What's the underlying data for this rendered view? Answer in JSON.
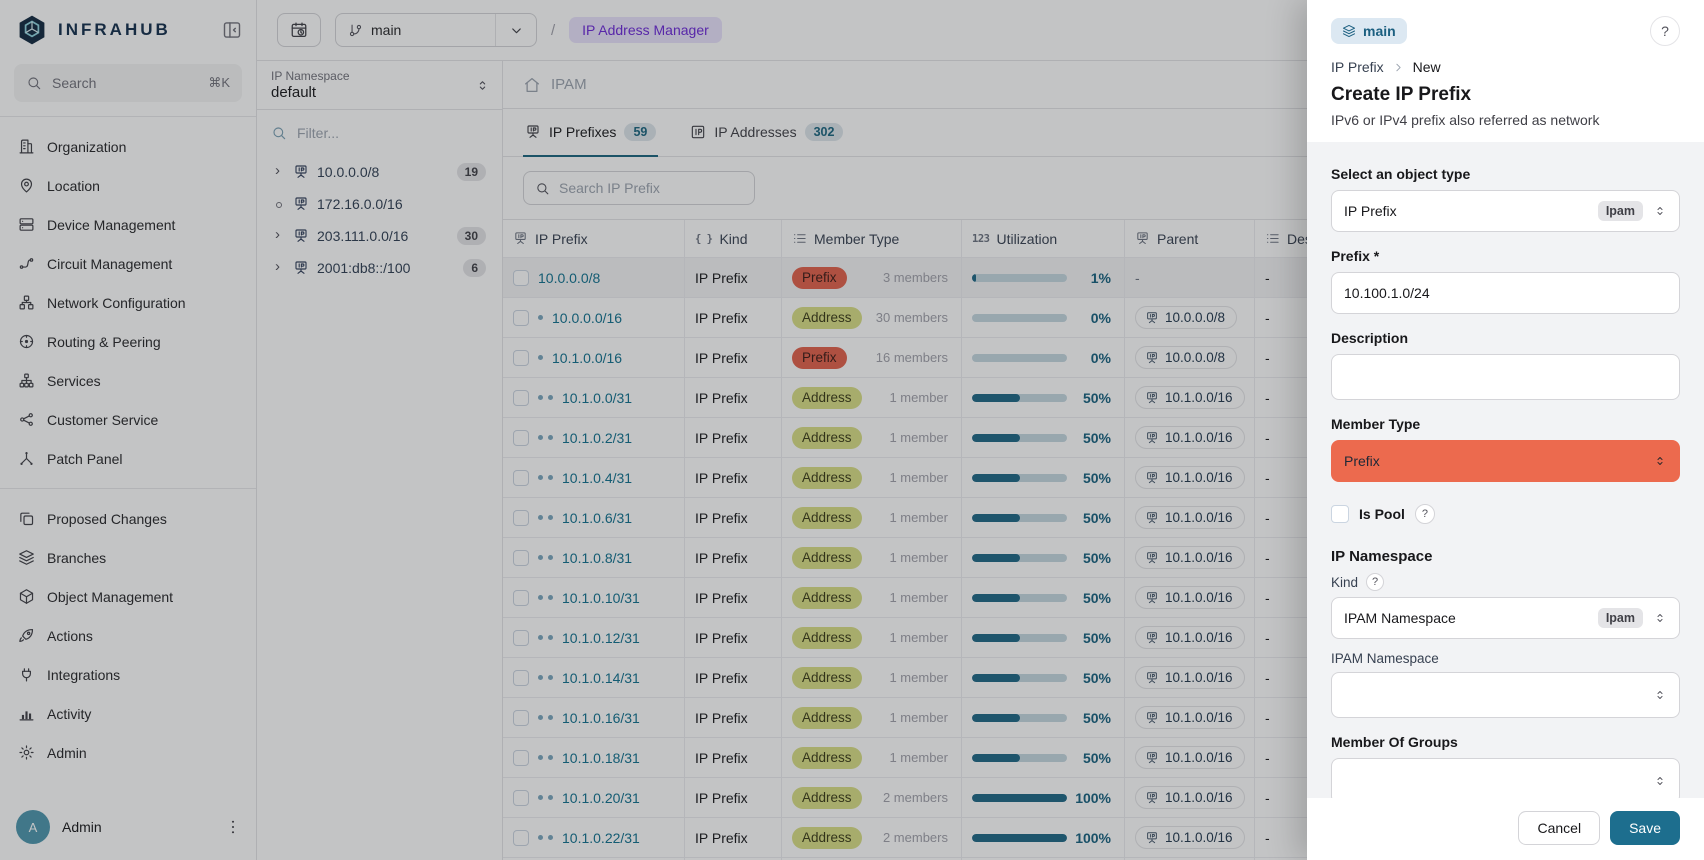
{
  "colors": {
    "accent_save": "#1d6e8e",
    "member_type_select_bg": "#ec6a4e",
    "prefix_badge_bg": "#e2604a",
    "address_badge_bg": "#d9df85",
    "link_text": "#10718f",
    "page_badge_bg": "#e9e2fc",
    "page_badge_text": "#6d28d9",
    "tab_underline": "#19647f"
  },
  "sidebar": {
    "logo_text": "INFRAHUB",
    "search": {
      "placeholder": "Search",
      "shortcut": "⌘K"
    },
    "items": [
      {
        "label": "Organization",
        "icon": "organization"
      },
      {
        "label": "Location",
        "icon": "location"
      },
      {
        "label": "Device Management",
        "icon": "device-management"
      },
      {
        "label": "Circuit Management",
        "icon": "circuit-management"
      },
      {
        "label": "Network Configuration",
        "icon": "network-configuration"
      },
      {
        "label": "Routing & Peering",
        "icon": "routing-peering"
      },
      {
        "label": "Services",
        "icon": "services"
      },
      {
        "label": "Customer Service",
        "icon": "customer-service"
      },
      {
        "label": "Patch Panel",
        "icon": "patch-panel"
      }
    ],
    "items_secondary": [
      {
        "label": "Proposed Changes",
        "icon": "proposed-changes"
      },
      {
        "label": "Branches",
        "icon": "branches"
      },
      {
        "label": "Object Management",
        "icon": "object-management"
      },
      {
        "label": "Actions",
        "icon": "actions"
      },
      {
        "label": "Integrations",
        "icon": "integrations"
      },
      {
        "label": "Activity",
        "icon": "activity"
      },
      {
        "label": "Admin",
        "icon": "admin"
      }
    ],
    "user": {
      "initial": "A",
      "name": "Admin"
    }
  },
  "topbar": {
    "branch": "main",
    "separator": "/",
    "page_badge": "IP Address Manager"
  },
  "tree_panel": {
    "namespace_label": "IP Namespace",
    "namespace_value": "default",
    "filter_placeholder": "Filter...",
    "items": [
      {
        "prefix": "10.0.0.0/8",
        "count": "19",
        "toggle": "chevron"
      },
      {
        "prefix": "172.16.0.0/16",
        "count": "",
        "toggle": "dot"
      },
      {
        "prefix": "203.111.0.0/16",
        "count": "30",
        "toggle": "chevron"
      },
      {
        "prefix": "2001:db8::/100",
        "count": "6",
        "toggle": "chevron"
      }
    ]
  },
  "main": {
    "section_title": "IPAM",
    "tabs": [
      {
        "label": "IP Prefixes",
        "count": "59",
        "active": true,
        "icon": "ip-sign"
      },
      {
        "label": "IP Addresses",
        "count": "302",
        "active": false,
        "icon": "ip-square"
      }
    ],
    "search_placeholder": "Search IP Prefix",
    "table": {
      "dash": "-",
      "headers": {
        "prefix": "IP Prefix",
        "kind": "Kind",
        "member_type": "Member Type",
        "utilization": "Utilization",
        "parent": "Parent",
        "description": "Description"
      },
      "glyphs": {
        "kind": "{ }",
        "utilization": "123"
      },
      "rows": [
        {
          "prefix": "10.0.0.0/8",
          "indent": 0,
          "kind": "IP Prefix",
          "member_type": "Prefix",
          "members": "3 members",
          "utilization": 1,
          "utilization_label": "1%",
          "parent": "",
          "description": "-",
          "highlight": true
        },
        {
          "prefix": "10.0.0.0/16",
          "indent": 1,
          "kind": "IP Prefix",
          "member_type": "Address",
          "members": "30 members",
          "utilization": 0,
          "utilization_label": "0%",
          "parent": "10.0.0.0/8",
          "description": "-"
        },
        {
          "prefix": "10.1.0.0/16",
          "indent": 1,
          "kind": "IP Prefix",
          "member_type": "Prefix",
          "members": "16 members",
          "utilization": 0,
          "utilization_label": "0%",
          "parent": "10.0.0.0/8",
          "description": "-"
        },
        {
          "prefix": "10.1.0.0/31",
          "indent": 2,
          "kind": "IP Prefix",
          "member_type": "Address",
          "members": "1 member",
          "utilization": 50,
          "utilization_label": "50%",
          "parent": "10.1.0.0/16",
          "description": "-"
        },
        {
          "prefix": "10.1.0.2/31",
          "indent": 2,
          "kind": "IP Prefix",
          "member_type": "Address",
          "members": "1 member",
          "utilization": 50,
          "utilization_label": "50%",
          "parent": "10.1.0.0/16",
          "description": "-"
        },
        {
          "prefix": "10.1.0.4/31",
          "indent": 2,
          "kind": "IP Prefix",
          "member_type": "Address",
          "members": "1 member",
          "utilization": 50,
          "utilization_label": "50%",
          "parent": "10.1.0.0/16",
          "description": "-"
        },
        {
          "prefix": "10.1.0.6/31",
          "indent": 2,
          "kind": "IP Prefix",
          "member_type": "Address",
          "members": "1 member",
          "utilization": 50,
          "utilization_label": "50%",
          "parent": "10.1.0.0/16",
          "description": "-"
        },
        {
          "prefix": "10.1.0.8/31",
          "indent": 2,
          "kind": "IP Prefix",
          "member_type": "Address",
          "members": "1 member",
          "utilization": 50,
          "utilization_label": "50%",
          "parent": "10.1.0.0/16",
          "description": "-"
        },
        {
          "prefix": "10.1.0.10/31",
          "indent": 2,
          "kind": "IP Prefix",
          "member_type": "Address",
          "members": "1 member",
          "utilization": 50,
          "utilization_label": "50%",
          "parent": "10.1.0.0/16",
          "description": "-"
        },
        {
          "prefix": "10.1.0.12/31",
          "indent": 2,
          "kind": "IP Prefix",
          "member_type": "Address",
          "members": "1 member",
          "utilization": 50,
          "utilization_label": "50%",
          "parent": "10.1.0.0/16",
          "description": "-"
        },
        {
          "prefix": "10.1.0.14/31",
          "indent": 2,
          "kind": "IP Prefix",
          "member_type": "Address",
          "members": "1 member",
          "utilization": 50,
          "utilization_label": "50%",
          "parent": "10.1.0.0/16",
          "description": "-"
        },
        {
          "prefix": "10.1.0.16/31",
          "indent": 2,
          "kind": "IP Prefix",
          "member_type": "Address",
          "members": "1 member",
          "utilization": 50,
          "utilization_label": "50%",
          "parent": "10.1.0.0/16",
          "description": "-"
        },
        {
          "prefix": "10.1.0.18/31",
          "indent": 2,
          "kind": "IP Prefix",
          "member_type": "Address",
          "members": "1 member",
          "utilization": 50,
          "utilization_label": "50%",
          "parent": "10.1.0.0/16",
          "description": "-"
        },
        {
          "prefix": "10.1.0.20/31",
          "indent": 2,
          "kind": "IP Prefix",
          "member_type": "Address",
          "members": "2 members",
          "utilization": 100,
          "utilization_label": "100%",
          "parent": "10.1.0.0/16",
          "description": "-"
        },
        {
          "prefix": "10.1.0.22/31",
          "indent": 2,
          "kind": "IP Prefix",
          "member_type": "Address",
          "members": "2 members",
          "utilization": 100,
          "utilization_label": "100%",
          "parent": "10.1.0.0/16",
          "description": "-"
        }
      ]
    }
  },
  "drawer": {
    "branch_badge": "main",
    "help": "?",
    "breadcrumb": {
      "parent": "IP Prefix",
      "current": "New"
    },
    "title": "Create IP Prefix",
    "subtitle": "IPv6 or IPv4 prefix also referred as network",
    "object_type": {
      "label": "Select an object type",
      "value": "IP Prefix",
      "badge": "Ipam"
    },
    "prefix_field": {
      "label": "Prefix *",
      "value": "10.100.1.0/24"
    },
    "description_field": {
      "label": "Description",
      "value": ""
    },
    "member_type_field": {
      "label": "Member Type",
      "value": "Prefix"
    },
    "is_pool": {
      "label": "Is Pool",
      "help": "?"
    },
    "namespace_section": {
      "title": "IP Namespace",
      "kind": {
        "label": "Kind",
        "help": "?",
        "value": "IPAM Namespace",
        "badge": "Ipam"
      },
      "ipam_namespace": {
        "label": "IPAM Namespace",
        "value": ""
      }
    },
    "member_of_groups": {
      "label": "Member Of Groups",
      "value": ""
    },
    "actions": {
      "cancel": "Cancel",
      "save": "Save"
    }
  }
}
